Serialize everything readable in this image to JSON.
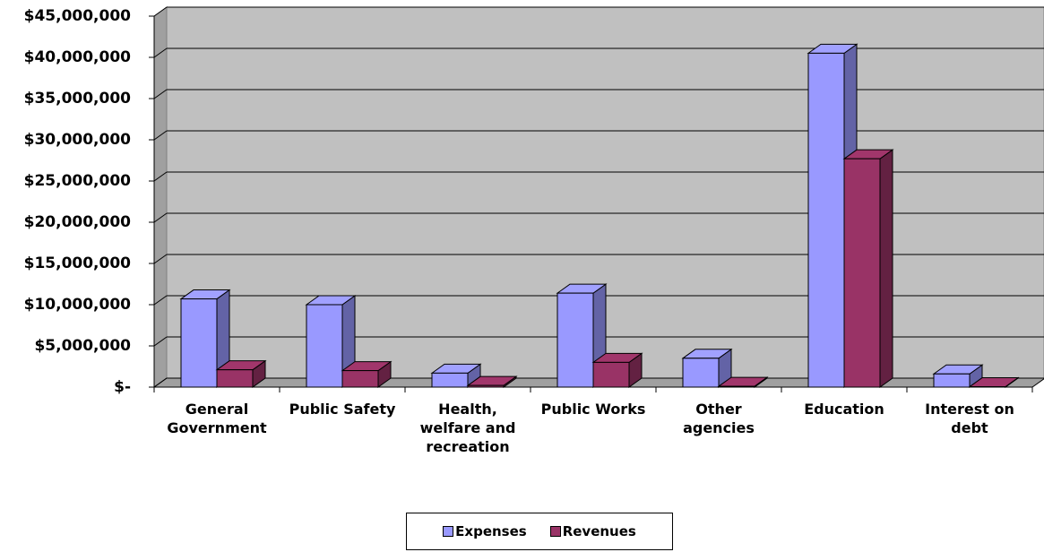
{
  "chart_data": {
    "type": "bar3d",
    "categories": [
      "General Government",
      "Public Safety",
      "Health, welfare and recreation",
      "Public Works",
      "Other agencies",
      "Education",
      "Interest on debt"
    ],
    "series": [
      {
        "name": "Expenses",
        "color": "#9999ff",
        "values": [
          10700000,
          10000000,
          1700000,
          11400000,
          3500000,
          40500000,
          1600000
        ]
      },
      {
        "name": "Revenues",
        "color": "#993366",
        "values": [
          2100000,
          2000000,
          200000,
          3000000,
          100000,
          27700000,
          50000
        ]
      }
    ],
    "ylim": [
      0,
      45000000
    ],
    "yticks": [
      {
        "value": 0,
        "label": "$-"
      },
      {
        "value": 5000000,
        "label": "$5,000,000"
      },
      {
        "value": 10000000,
        "label": "$10,000,000"
      },
      {
        "value": 15000000,
        "label": "$15,000,000"
      },
      {
        "value": 20000000,
        "label": "$20,000,000"
      },
      {
        "value": 25000000,
        "label": "$25,000,000"
      },
      {
        "value": 30000000,
        "label": "$30,000,000"
      },
      {
        "value": 35000000,
        "label": "$35,000,000"
      },
      {
        "value": 40000000,
        "label": "$40,000,000"
      },
      {
        "value": 45000000,
        "label": "$45,000,000"
      }
    ],
    "grid": true,
    "legend": "bottom"
  }
}
